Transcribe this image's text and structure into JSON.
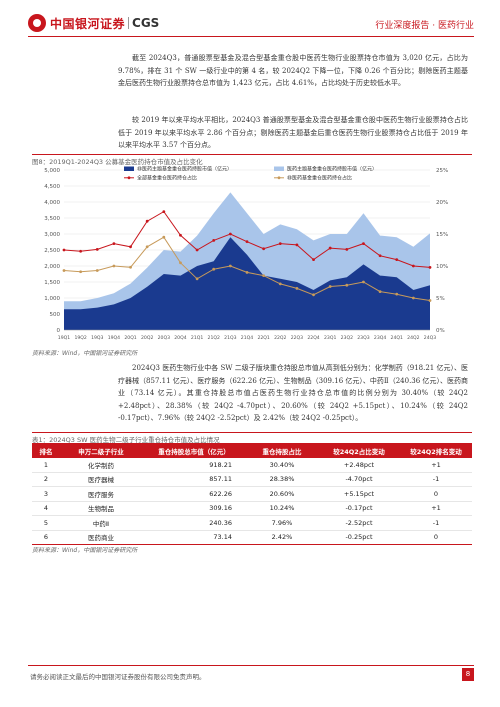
{
  "header": {
    "logo_cn": "中国银河证券",
    "logo_en": "CGS",
    "title": "行业深度报告 · 医药行业"
  },
  "paragraphs": {
    "p1": "截至 2024Q3，普通股票型基金及混合型基金重仓股中医药生物行业股票持仓市值为 3,020 亿元，占比为 9.78%，排在 31 个 SW 一级行业中的第 4 名，较 2024Q2 下降一位，下降 0.26 个百分比；剔除医药主题基金后医药生物行业股票持仓总市值为 1,423 亿元，占比 4.61%，占比均处于历史较低水平。",
    "p2": "较 2019 年以来平均水平相比，2024Q3 普通股票型基金及混合型基金重仓股中医药生物行业股票持仓占比低于 2019 年以来平均水平 2.86 个百分点；剔除医药主题基金后重仓医药生物行业股票持仓占比低于 2019 年以来平均水平 3.57 个百分点。",
    "p3": "2024Q3 医药生物行业中各 SW 二级子版块重仓持股总市值从高到低分别为：化学制药（918.21 亿元）、医疗器械（857.11 亿元）、医疗服务（622.26 亿元）、生物制品（309.16 亿元）、中药Ⅱ（240.36 亿元）、医药商业（73.14 亿元）。其重仓持股总市值占医药生物行业持仓总市值的比例分别为 30.40%（较 24Q2 +2.48pct）、28.38%（较 24Q2 -4.70pct）、20.60%（较 24Q2 +5.15pct）、10.24%（较 24Q2 -0.17pct）、7.96%（较 24Q2 -2.52pct）及 2.42%（较 24Q2 -0.25pct）。"
  },
  "figure": {
    "title": "图8：2019Q1-2024Q3 公募基金医药持仓市值及占比变化",
    "source": "资料来源：Wind，中国银河证券研究所"
  },
  "chart_data": {
    "type": "area",
    "categories": [
      "19Q1",
      "19Q2",
      "19Q3",
      "19Q4",
      "20Q1",
      "20Q2",
      "20Q3",
      "20Q4",
      "21Q1",
      "21Q2",
      "21Q3",
      "21Q4",
      "22Q1",
      "22Q2",
      "22Q3",
      "22Q4",
      "23Q1",
      "23Q2",
      "23Q3",
      "23Q4",
      "24Q1",
      "24Q2",
      "24Q3"
    ],
    "y_left_ticks": [
      "0",
      "500",
      "1,000",
      "1,500",
      "2,000",
      "2,500",
      "3,000",
      "3,500",
      "4,000",
      "4,500",
      "5,000"
    ],
    "y_left_range": [
      0,
      5000
    ],
    "y_right_ticks": [
      "0%",
      "5%",
      "10%",
      "15%",
      "20%",
      "25%"
    ],
    "y_right_range": [
      0,
      25
    ],
    "series": [
      {
        "name": "非医药主题基金重仓医药持股市值（亿元）",
        "axis": "left",
        "kind": "area",
        "color": "#1a3a8f",
        "values": [
          650,
          650,
          700,
          800,
          1000,
          1350,
          1750,
          1700,
          2000,
          2150,
          2900,
          2350,
          1700,
          1600,
          1500,
          1250,
          1550,
          1650,
          2050,
          1700,
          1650,
          1250,
          1400
        ]
      },
      {
        "name": "医药主题基金重仓医药持股市值（亿元）",
        "axis": "left",
        "kind": "area",
        "color": "#a9c5ea",
        "values": [
          900,
          900,
          1000,
          1150,
          1450,
          1950,
          2500,
          2450,
          2950,
          3650,
          4300,
          3650,
          3000,
          3300,
          3150,
          2800,
          3000,
          3000,
          3650,
          2950,
          2900,
          2600,
          3020
        ]
      },
      {
        "name": "全部基金重仓医药持仓占比",
        "axis": "right",
        "kind": "line",
        "color": "#c8161d",
        "values": [
          12.5,
          12.3,
          12.6,
          13.5,
          13.0,
          17.0,
          18.5,
          14.8,
          12.5,
          14.0,
          15.0,
          13.8,
          12.7,
          13.5,
          13.3,
          11.0,
          12.8,
          12.6,
          13.5,
          11.6,
          11.0,
          10.0,
          9.78
        ]
      },
      {
        "name": "非医药基金重仓医药持仓占比",
        "axis": "right",
        "kind": "line",
        "color": "#c79a5a",
        "values": [
          9.3,
          9.1,
          9.3,
          10.0,
          9.8,
          13.0,
          14.5,
          10.5,
          8.0,
          9.5,
          10.0,
          9.0,
          8.5,
          7.2,
          6.5,
          5.5,
          6.8,
          7.0,
          7.5,
          6.0,
          5.6,
          5.0,
          4.61
        ]
      }
    ],
    "grid": true,
    "legend_position": "top"
  },
  "table": {
    "title": "表1：2024Q3 SW 医药生物二级子行业重仓持仓市值及占比情况",
    "headers": [
      "排名",
      "申万二级子行业",
      "重仓持股总市值（亿元）",
      "重仓持股占比",
      "较24Q2占比变动",
      "较24Q2排名变动"
    ],
    "rows": [
      [
        "1",
        "化学制药",
        "918.21",
        "30.40%",
        "+2.48pct",
        "+1"
      ],
      [
        "2",
        "医疗器械",
        "857.11",
        "28.38%",
        "-4.70pct",
        "-1"
      ],
      [
        "3",
        "医疗服务",
        "622.26",
        "20.60%",
        "+5.15pct",
        "0"
      ],
      [
        "4",
        "生物制品",
        "309.16",
        "10.24%",
        "-0.17pct",
        "+1"
      ],
      [
        "5",
        "中药Ⅱ",
        "240.36",
        "7.96%",
        "-2.52pct",
        "-1"
      ],
      [
        "6",
        "医药商业",
        "73.14",
        "2.42%",
        "-0.25pct",
        "0"
      ]
    ],
    "source": "资料来源：Wind，中国银河证券研究所"
  },
  "footer": {
    "disclaimer": "请务必阅读正文最后的中国银河证券股份有限公司免责声明。",
    "page": "8"
  },
  "colors": {
    "brand": "#c8161d",
    "dark_area": "#1a3a8f",
    "light_area": "#a9c5ea"
  }
}
